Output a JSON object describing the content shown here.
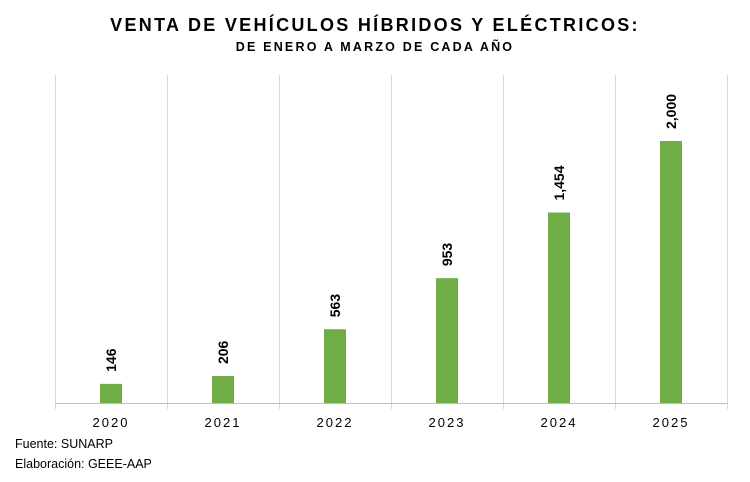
{
  "chart_data": {
    "type": "bar",
    "title": "VENTA DE VEHÍCULOS HÍBRIDOS Y ELÉCTRICOS:",
    "subtitle": "DE ENERO A MARZO DE CADA AÑO",
    "categories": [
      "2020",
      "2021",
      "2022",
      "2023",
      "2024",
      "2025"
    ],
    "values": [
      146,
      206,
      563,
      953,
      1454,
      2000
    ],
    "value_labels": [
      "146",
      "206",
      "563",
      "953",
      "1,454",
      "2,000"
    ],
    "ylim": [
      0,
      2000
    ],
    "xlabel": "",
    "ylabel": "",
    "grid": "vertical category separators",
    "legend": "none",
    "bar_color": "#70AD47"
  },
  "footer": {
    "source": "Fuente: SUNARP",
    "credit": "Elaboración: GEEE-AAP"
  }
}
